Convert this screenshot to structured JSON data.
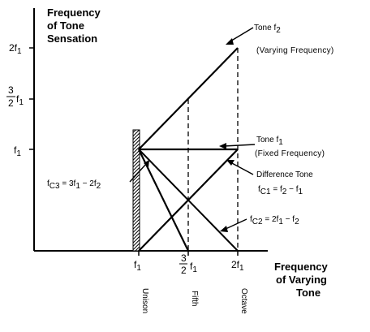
{
  "y_axis": {
    "title_lines": [
      "Frequency",
      "of Tone",
      "Sensation"
    ]
  },
  "x_axis": {
    "title_lines": [
      "Frequency",
      "of Varying",
      "Tone"
    ]
  },
  "y_ticks": {
    "two_f1": "2f",
    "frac_num": "3",
    "frac_den": "2",
    "f1": "f",
    "sub": "1"
  },
  "x_ticks": {
    "f1": "f",
    "frac_num": "3",
    "frac_den": "2",
    "frac_f": "f",
    "two_f1": "2f",
    "sub": "1"
  },
  "interval_names": [
    "Unison",
    "Fifth",
    "Octave"
  ],
  "annotations": {
    "tone_f2": {
      "main": "Tone f",
      "sub": "2",
      "note": "(Varying Frequency)"
    },
    "tone_f1": {
      "main": "Tone f",
      "sub": "1",
      "note": "(Fixed Frequency)"
    },
    "difference": {
      "title": "Difference Tone",
      "eq_a": "f",
      "eq_sub_a": "C1",
      "eq_b": " = f",
      "eq_sub_b": "2",
      "eq_c": " − f",
      "eq_sub_c": "1"
    },
    "fc2": {
      "a": "f",
      "sub_a": "C2",
      "b": " = 2f",
      "sub_b": "1",
      "c": " − f",
      "sub_c": "2"
    },
    "fc3": {
      "a": "f",
      "sub_a": "C3",
      "b": " = 3f",
      "sub_b": "1",
      "c": " − 2f",
      "sub_c": "2"
    }
  }
}
